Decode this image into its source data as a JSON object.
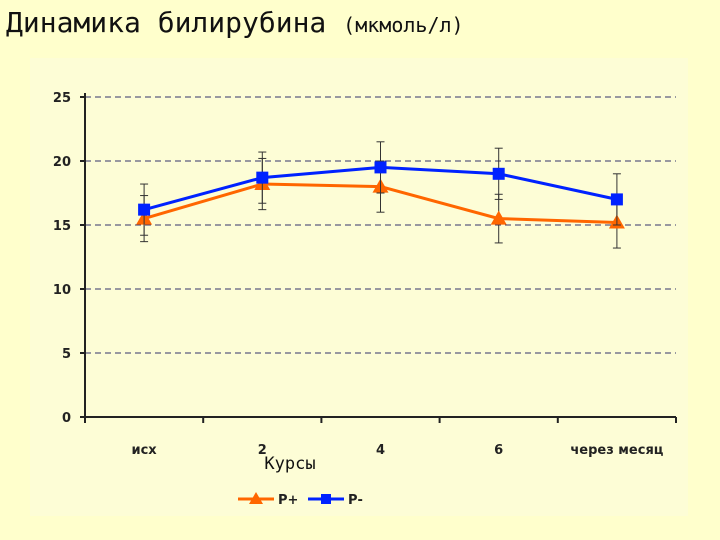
{
  "slide": {
    "title": "Динамика билирубина",
    "title_unit": "(мкмоль/л)"
  },
  "chart_data": {
    "type": "line",
    "title": "",
    "xlabel": "Курсы",
    "ylabel": "",
    "categories": [
      "исх",
      "2",
      "4",
      "6",
      "через месяц"
    ],
    "ylim": [
      0,
      25
    ],
    "yticks": [
      0,
      5,
      10,
      15,
      20,
      25
    ],
    "grid": true,
    "legend_position": "bottom",
    "series": [
      {
        "name": "Р+",
        "color": "#ff6600",
        "marker": "triangle",
        "values": [
          15.5,
          18.2,
          18.0,
          15.5,
          15.2
        ],
        "error": [
          1.8,
          2.0,
          2.0,
          1.9,
          2.0
        ]
      },
      {
        "name": "Р-",
        "color": "#0022ff",
        "marker": "square",
        "values": [
          16.2,
          18.7,
          19.5,
          19.0,
          17.0
        ],
        "error": [
          2.0,
          2.0,
          2.0,
          2.0,
          2.0
        ]
      }
    ]
  }
}
